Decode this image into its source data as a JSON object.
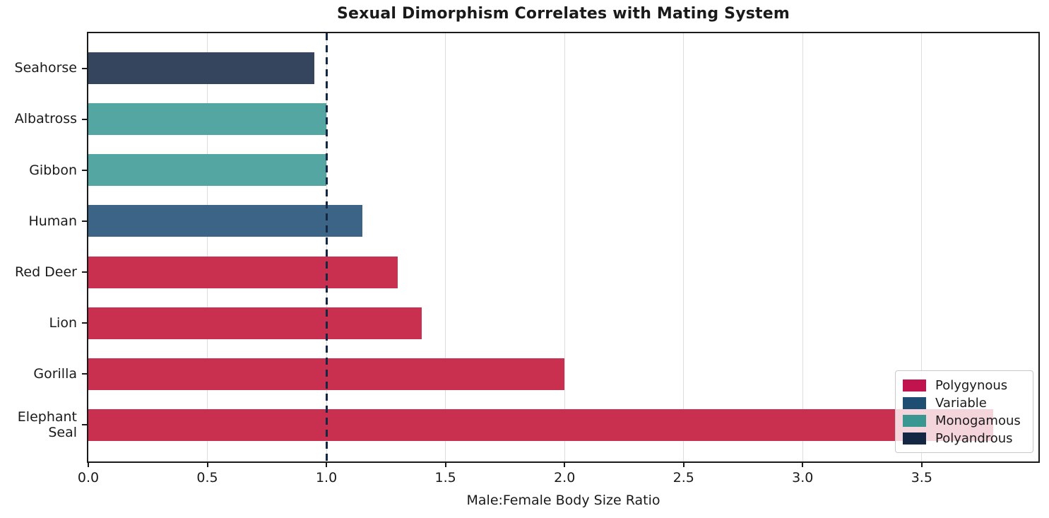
{
  "chart_data": {
    "type": "bar",
    "orientation": "horizontal",
    "title": "Sexual Dimorphism Correlates with Mating System",
    "xlabel": "Male:Female Body Size Ratio",
    "ylabel": "",
    "xlim": [
      0,
      3.99
    ],
    "grid": "vertical-only",
    "xticks": [
      "0.0",
      "0.5",
      "1.0",
      "1.5",
      "2.0",
      "2.5",
      "3.0",
      "3.5"
    ],
    "xtick_values": [
      0,
      0.5,
      1.0,
      1.5,
      2.0,
      2.5,
      3.0,
      3.5
    ],
    "categories": [
      "Seahorse",
      "Albatross",
      "Gibbon",
      "Human",
      "Red Deer",
      "Lion",
      "Gorilla",
      "Elephant Seal"
    ],
    "values": [
      0.95,
      1.0,
      1.0,
      1.15,
      1.3,
      1.4,
      2.0,
      3.8
    ],
    "groups": [
      "Polyandrous",
      "Monogamous",
      "Monogamous",
      "Variable",
      "Polygynous",
      "Polygynous",
      "Polygynous",
      "Polygynous"
    ],
    "reference_line": {
      "x": 1.0,
      "style": "dashed",
      "color": "#142743"
    },
    "legend_position": "lower-right",
    "legend": [
      {
        "label": "Polygynous",
        "color": "#C1134E",
        "bar_color": "#C9304F"
      },
      {
        "label": "Variable",
        "color": "#1F4E73",
        "bar_color": "#3B6486"
      },
      {
        "label": "Monogamous",
        "color": "#3A9690",
        "bar_color": "#54A6A2"
      },
      {
        "label": "Polyandrous",
        "color": "#142743",
        "bar_color": "#36455E"
      }
    ]
  }
}
